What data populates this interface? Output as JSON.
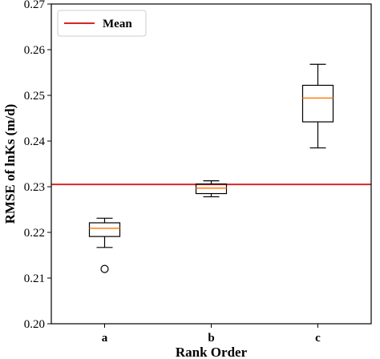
{
  "chart_data": {
    "type": "box",
    "title": "",
    "xlabel": "Rank Order",
    "ylabel": "RMSE of lnKs (m/d)",
    "ylim": [
      0.2,
      0.27
    ],
    "yticks": [
      "0.20",
      "0.21",
      "0.22",
      "0.23",
      "0.24",
      "0.25",
      "0.26",
      "0.27"
    ],
    "categories": [
      "a",
      "b",
      "c"
    ],
    "boxes": [
      {
        "category": "a",
        "whisker_low": 0.2167,
        "q1": 0.2191,
        "median": 0.2209,
        "q3": 0.2221,
        "whisker_high": 0.2231,
        "outliers": [
          0.212
        ]
      },
      {
        "category": "b",
        "whisker_low": 0.2278,
        "q1": 0.2285,
        "median": 0.2297,
        "q3": 0.2306,
        "whisker_high": 0.2313,
        "outliers": []
      },
      {
        "category": "c",
        "whisker_low": 0.2385,
        "q1": 0.2442,
        "median": 0.2494,
        "q3": 0.2522,
        "whisker_high": 0.2568,
        "outliers": []
      }
    ],
    "reference_line": {
      "name": "Mean",
      "value": 0.2305,
      "color": "#d62728"
    },
    "legend": {
      "placement": "top-left",
      "entries": [
        "Mean"
      ]
    },
    "grid": false,
    "colors": {
      "box": "#000000",
      "median": "#ff7f0e",
      "mean_line": "#d62728"
    }
  }
}
